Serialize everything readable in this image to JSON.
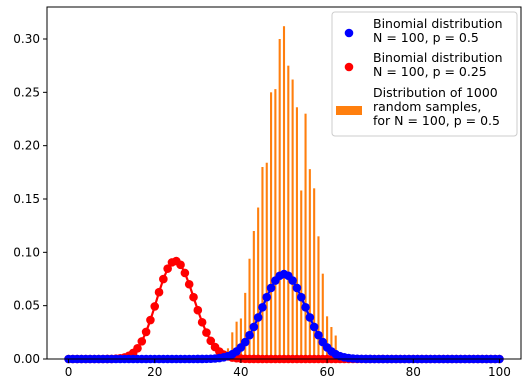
{
  "chart_data": {
    "type": "bar",
    "xlim": [
      -5,
      105
    ],
    "ylim": [
      0,
      0.33
    ],
    "x_ticks": [
      0,
      20,
      40,
      60,
      80,
      100
    ],
    "y_ticks": [
      0.0,
      0.05,
      0.1,
      0.15,
      0.2,
      0.25,
      0.3
    ],
    "x_tick_labels": [
      "0",
      "20",
      "40",
      "60",
      "80",
      "100"
    ],
    "y_tick_labels": [
      "0.00",
      "0.05",
      "0.10",
      "0.15",
      "0.20",
      "0.25",
      "0.30"
    ],
    "legend_position": "top-right",
    "series": [
      {
        "name": "Binomial distribution\nN = 100, p = 0.5",
        "kind": "scatter+line",
        "color": "#0000ff",
        "N": 100,
        "p": 0.5,
        "x_range": [
          0,
          100
        ],
        "peak": {
          "x": 50,
          "y": 0.0796
        }
      },
      {
        "name": "Binomial distribution\nN = 100, p = 0.25",
        "kind": "scatter+line",
        "color": "#ff0000",
        "N": 100,
        "p": 0.25,
        "x_range": [
          0,
          100
        ],
        "peak": {
          "x": 25,
          "y": 0.0918
        }
      },
      {
        "name": "Distribution of 1000\nrandom samples,\nfor N = 100, p = 0.5",
        "kind": "bar",
        "color": "#ff7f0e",
        "x": [
          36,
          37,
          38,
          39,
          40,
          41,
          42,
          43,
          44,
          45,
          46,
          47,
          48,
          49,
          50,
          51,
          52,
          53,
          54,
          55,
          56,
          57,
          58,
          59,
          60,
          61,
          62,
          63
        ],
        "values": [
          0.007,
          0.01,
          0.025,
          0.035,
          0.038,
          0.062,
          0.094,
          0.12,
          0.142,
          0.18,
          0.184,
          0.25,
          0.253,
          0.3,
          0.312,
          0.275,
          0.262,
          0.236,
          0.158,
          0.23,
          0.178,
          0.16,
          0.115,
          0.08,
          0.04,
          0.03,
          0.022,
          0.005
        ]
      }
    ]
  }
}
